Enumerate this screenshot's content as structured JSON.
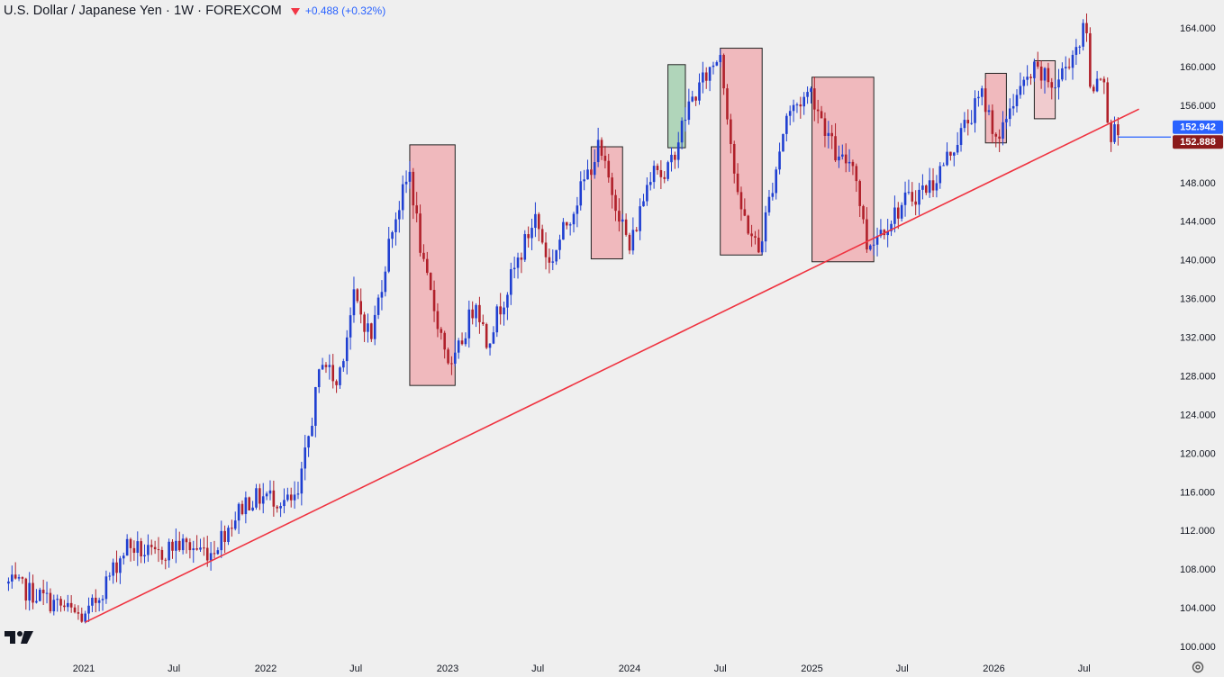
{
  "header": {
    "title": "U.S. Dollar / Japanese Yen · 1W · FOREXCOM",
    "change": "+0.488 (+0.32%)",
    "change_icon": "down-triangle-icon"
  },
  "colors": {
    "up": "#1f3fd1",
    "down": "#b0202a",
    "trendline": "#ef3340",
    "box_red_fill": "#f0b3b7",
    "box_green_fill": "#a9d2b4",
    "box_border": "#222222",
    "last_price_bg": "#2962ff",
    "prev_price_bg": "#8b1a1a"
  },
  "chart_data": {
    "type": "candlestick",
    "title": "U.S. Dollar / Japanese Yen · 1W · FOREXCOM",
    "interval": "1W",
    "ylim": [
      100,
      165
    ],
    "y_ticks": [
      100,
      104,
      108,
      112,
      116,
      120,
      124,
      128,
      132,
      136,
      140,
      144,
      148,
      152,
      156,
      160,
      164
    ],
    "y_tick_format": "0.000",
    "x_ticks": [
      {
        "label": "2021",
        "date": "2021-01-01"
      },
      {
        "label": "Jul",
        "date": "2021-07-01"
      },
      {
        "label": "2022",
        "date": "2022-01-01"
      },
      {
        "label": "Jul",
        "date": "2022-07-01"
      },
      {
        "label": "2023",
        "date": "2023-01-01"
      },
      {
        "label": "Jul",
        "date": "2023-07-01"
      },
      {
        "label": "2024",
        "date": "2024-01-01"
      },
      {
        "label": "Jul",
        "date": "2024-07-01"
      },
      {
        "label": "2025",
        "date": "2025-01-01"
      },
      {
        "label": "Jul",
        "date": "2025-07-01"
      },
      {
        "label": "2026",
        "date": "2026-01-01"
      },
      {
        "label": "Jul",
        "date": "2026-07-01"
      }
    ],
    "price_anchors": [
      [
        "2020-08-03",
        106.5
      ],
      [
        "2020-10-05",
        105.2
      ],
      [
        "2020-12-28",
        103.0
      ],
      [
        "2021-01-04",
        102.8
      ],
      [
        "2021-03-29",
        110.5
      ],
      [
        "2021-05-24",
        109.2
      ],
      [
        "2021-07-05",
        110.6
      ],
      [
        "2021-09-13",
        109.8
      ],
      [
        "2021-11-22",
        115.0
      ],
      [
        "2022-01-03",
        115.6
      ],
      [
        "2022-02-21",
        114.8
      ],
      [
        "2022-03-07",
        115.4
      ],
      [
        "2022-04-25",
        130.0
      ],
      [
        "2022-05-23",
        127.0
      ],
      [
        "2022-06-27",
        136.0
      ],
      [
        "2022-08-01",
        132.0
      ],
      [
        "2022-09-12",
        143.5
      ],
      [
        "2022-10-17",
        149.0
      ],
      [
        "2022-11-14",
        139.0
      ],
      [
        "2022-12-26",
        131.0
      ],
      [
        "2023-01-09",
        128.5
      ],
      [
        "2023-02-27",
        136.0
      ],
      [
        "2023-03-20",
        131.5
      ],
      [
        "2023-06-26",
        144.5
      ],
      [
        "2023-07-24",
        139.5
      ],
      [
        "2023-10-30",
        151.5
      ],
      [
        "2023-12-11",
        145.0
      ],
      [
        "2024-01-01",
        141.0
      ],
      [
        "2024-02-19",
        150.5
      ],
      [
        "2024-03-11",
        148.0
      ],
      [
        "2024-04-29",
        156.0
      ],
      [
        "2024-06-24",
        160.9
      ],
      [
        "2024-07-01",
        161.6
      ],
      [
        "2024-08-05",
        146.0
      ],
      [
        "2024-09-16",
        140.8
      ],
      [
        "2024-11-11",
        155.0
      ],
      [
        "2024-12-30",
        157.5
      ],
      [
        "2025-02-24",
        150.0
      ],
      [
        "2025-03-24",
        150.5
      ],
      [
        "2025-04-21",
        141.5
      ],
      [
        "2025-07-07",
        146.0
      ],
      [
        "2025-09-01",
        148.0
      ],
      [
        "2025-12-08",
        157.0
      ],
      [
        "2026-01-12",
        152.0
      ],
      [
        "2026-02-02",
        156.0
      ],
      [
        "2026-03-23",
        159.5
      ],
      [
        "2026-05-04",
        158.0
      ],
      [
        "2026-06-29",
        163.5
      ],
      [
        "2026-07-06",
        163.8
      ],
      [
        "2026-07-13",
        157.5
      ],
      [
        "2026-08-03",
        159.8
      ],
      [
        "2026-08-24",
        153.0
      ],
      [
        "2026-09-07",
        152.9
      ]
    ],
    "highlight_boxes": [
      {
        "start": "2022-10-17",
        "end": "2023-01-16",
        "low": 127.0,
        "high": 151.9,
        "color": "red"
      },
      {
        "start": "2023-10-16",
        "end": "2023-12-18",
        "low": 140.1,
        "high": 151.7,
        "color": "red"
      },
      {
        "start": "2024-03-18",
        "end": "2024-04-22",
        "low": 151.6,
        "high": 160.2,
        "color": "green"
      },
      {
        "start": "2024-07-01",
        "end": "2024-09-23",
        "low": 140.5,
        "high": 161.9,
        "color": "red"
      },
      {
        "start": "2025-01-01",
        "end": "2025-05-05",
        "low": 139.8,
        "high": 158.9,
        "color": "red"
      },
      {
        "start": "2025-12-15",
        "end": "2026-01-26",
        "low": 152.1,
        "high": 159.3,
        "color": "red"
      },
      {
        "start": "2026-03-23",
        "end": "2026-05-04",
        "low": 154.6,
        "high": 160.6,
        "color": "red-light"
      }
    ],
    "trendline": {
      "start": [
        "2021-01-04",
        102.5
      ],
      "end": [
        "2026-10-19",
        155.6
      ]
    },
    "last_price": "152.942",
    "prev_price": "152.888",
    "last_price_value": 152.942,
    "prev_price_value": 152.888
  }
}
